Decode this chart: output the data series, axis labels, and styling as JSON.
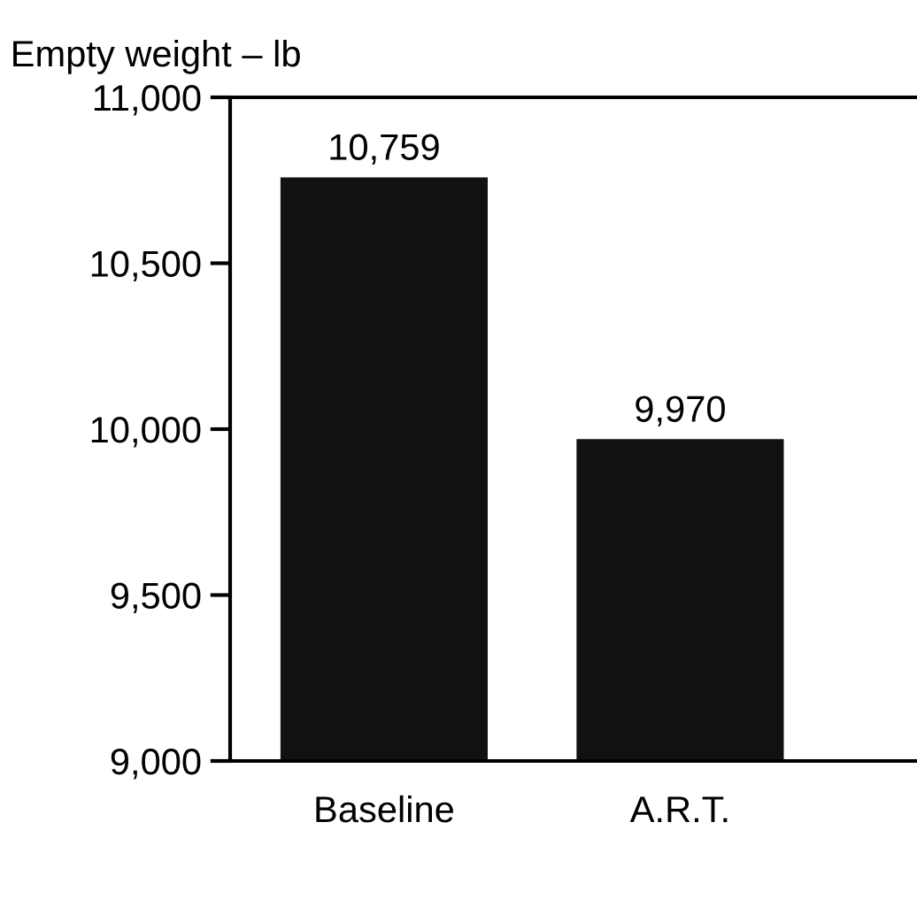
{
  "chart_data": {
    "type": "bar",
    "ylabel": "Empty weight – lb",
    "categories": [
      "Baseline",
      "A.R.T."
    ],
    "values": [
      10759,
      9970
    ],
    "value_labels": [
      "10,759",
      "9,970"
    ],
    "color": "#111111",
    "ylim": [
      9000,
      11000
    ],
    "yticks": [
      {
        "value": 9000,
        "label": "9,000"
      },
      {
        "value": 9500,
        "label": "9,500"
      },
      {
        "value": 10000,
        "label": "10,000"
      },
      {
        "value": 10500,
        "label": "10,500"
      },
      {
        "value": 11000,
        "label": "11,000"
      }
    ],
    "grid": false,
    "legend": false
  }
}
